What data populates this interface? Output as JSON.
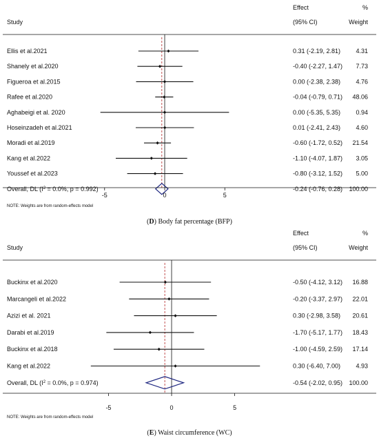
{
  "chart_data": [
    {
      "type": "forest",
      "panel_label": "D",
      "caption": "Body fat percentage (BFP)",
      "header": {
        "study": "Study",
        "effect": "Effect",
        "ci": "(95% CI)",
        "pct": "%",
        "weight": "Weight"
      },
      "x_ticks": [
        -5,
        0,
        5
      ],
      "xlim": [
        -9.4,
        9.8
      ],
      "reference_line": -0.24,
      "studies": [
        {
          "name": "Ellis et al.2021",
          "effect": 0.31,
          "lo": -2.19,
          "hi": 2.81,
          "text": "0.31 (-2.19, 2.81)",
          "weight": "4.31"
        },
        {
          "name": "Shanely et al.2020",
          "effect": -0.4,
          "lo": -2.27,
          "hi": 1.47,
          "text": "-0.40 (-2.27, 1.47)",
          "weight": "7.73"
        },
        {
          "name": "Figueroa et al.2015",
          "effect": 0.0,
          "lo": -2.38,
          "hi": 2.38,
          "text": "0.00 (-2.38, 2.38)",
          "weight": "4.76"
        },
        {
          "name": "Rafee et al.2020",
          "effect": -0.04,
          "lo": -0.79,
          "hi": 0.71,
          "text": "-0.04 (-0.79, 0.71)",
          "weight": "48.06"
        },
        {
          "name": "Aghabeigi et al. 2020",
          "effect": 0.0,
          "lo": -5.35,
          "hi": 5.35,
          "text": "0.00 (-5.35, 5.35)",
          "weight": "0.94"
        },
        {
          "name": "Hoseinzadeh et al.2021",
          "effect": 0.01,
          "lo": -2.41,
          "hi": 2.43,
          "text": "0.01 (-2.41, 2.43)",
          "weight": "4.60"
        },
        {
          "name": "Moradi et al.2019",
          "effect": -0.6,
          "lo": -1.72,
          "hi": 0.52,
          "text": "-0.60 (-1.72, 0.52)",
          "weight": "21.54"
        },
        {
          "name": "Kang et al.2022",
          "effect": -1.1,
          "lo": -4.07,
          "hi": 1.87,
          "text": "-1.10 (-4.07, 1.87)",
          "weight": "3.05"
        },
        {
          "name": "Youssef et al.2023",
          "effect": -0.8,
          "lo": -3.12,
          "hi": 1.52,
          "text": "-0.80 (-3.12, 1.52)",
          "weight": "5.00"
        }
      ],
      "overall": {
        "label_prefix": "Overall, DL (I",
        "label_sup": "2",
        "label_suffix": " = 0.0%, p = 0.992)",
        "effect": -0.24,
        "lo": -0.76,
        "hi": 0.28,
        "text": "-0.24 (-0.76, 0.28)",
        "weight": "100.00"
      },
      "note": "NOTE: Weights are from random-effects model"
    },
    {
      "type": "forest",
      "panel_label": "E",
      "caption": "Waist circumference (WC)",
      "header": {
        "study": "Study",
        "effect": "Effect",
        "ci": "(95% CI)",
        "pct": "%",
        "weight": "Weight"
      },
      "x_ticks": [
        -5,
        0,
        5
      ],
      "xlim": [
        -8.3,
        11.9
      ],
      "reference_line": -0.54,
      "studies": [
        {
          "name": "Buckinx et al.2020",
          "effect": -0.5,
          "lo": -4.12,
          "hi": 3.12,
          "text": "-0.50 (-4.12, 3.12)",
          "weight": "16.88"
        },
        {
          "name": "Marcangeli et al.2022",
          "effect": -0.2,
          "lo": -3.37,
          "hi": 2.97,
          "text": "-0.20 (-3.37, 2.97)",
          "weight": "22.01"
        },
        {
          "name": "Azizi et al. 2021",
          "effect": 0.3,
          "lo": -2.98,
          "hi": 3.58,
          "text": "0.30 (-2.98, 3.58)",
          "weight": "20.61"
        },
        {
          "name": "Darabi et al.2019",
          "effect": -1.7,
          "lo": -5.17,
          "hi": 1.77,
          "text": "-1.70 (-5.17, 1.77)",
          "weight": "18.43"
        },
        {
          "name": "Buckinx et al.2018",
          "effect": -1.0,
          "lo": -4.59,
          "hi": 2.59,
          "text": "-1.00 (-4.59, 2.59)",
          "weight": "17.14"
        },
        {
          "name": "Kang et al.2022",
          "effect": 0.3,
          "lo": -6.4,
          "hi": 7.0,
          "text": "0.30 (-6.40, 7.00)",
          "weight": "4.93"
        }
      ],
      "overall": {
        "label_prefix": "Overall, DL (I",
        "label_sup": "2",
        "label_suffix": " = 0.0%, p = 0.974)",
        "effect": -0.54,
        "lo": -2.02,
        "hi": 0.95,
        "text": "-0.54 (-2.02, 0.95)",
        "weight": "100.00"
      },
      "note": "NOTE: Weights are from random-effects model"
    }
  ],
  "colors": {
    "diamond": "#1a237e",
    "reference_line": "#b22222",
    "ink": "#111111"
  }
}
